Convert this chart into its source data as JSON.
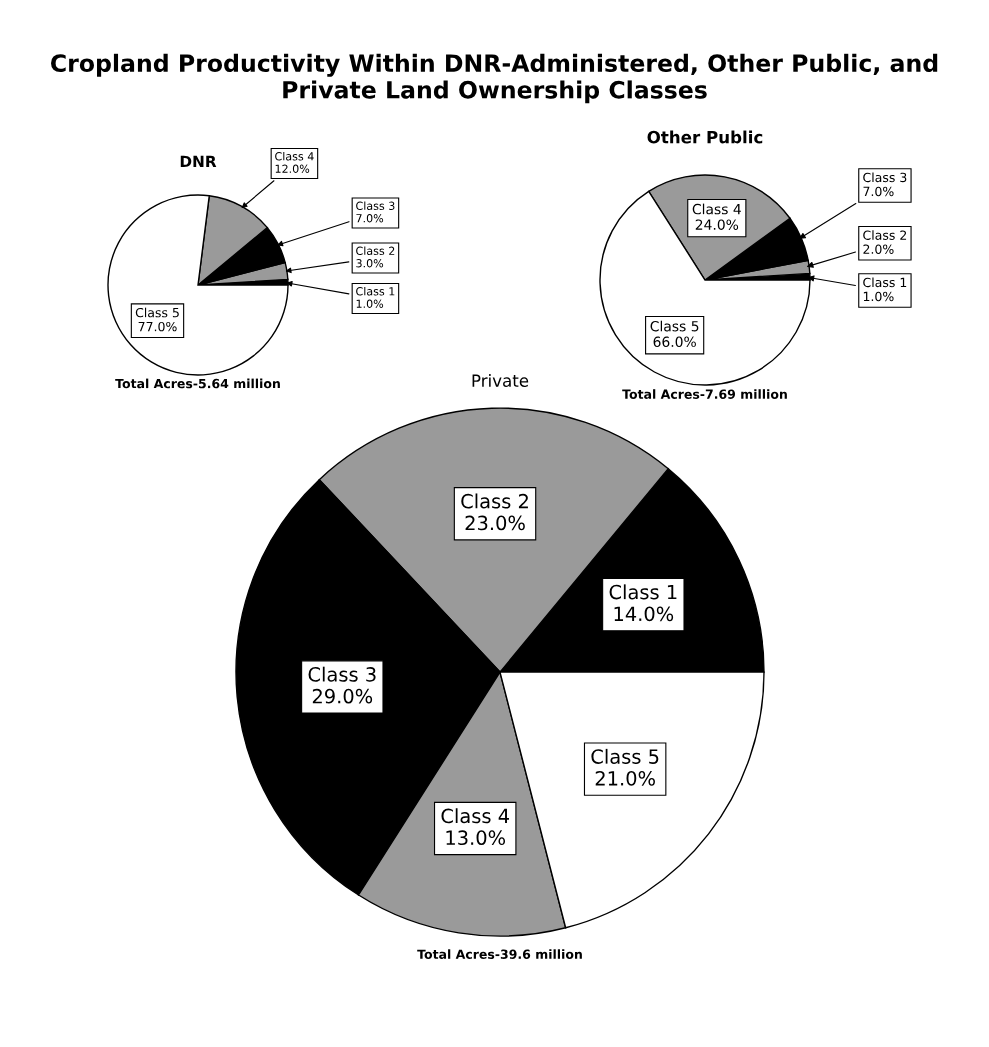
{
  "chart_data": [
    {
      "type": "pie",
      "title": "DNR",
      "categories": [
        "Class 1",
        "Class 2",
        "Class 3",
        "Class 4",
        "Class 5"
      ],
      "values": [
        1,
        3,
        7,
        12,
        77
      ],
      "value_labels": [
        "1.0%",
        "3.0%",
        "7.0%",
        "12.0%",
        "77.0%"
      ],
      "colors": [
        "#000000",
        "#9a9a9a",
        "#000000",
        "#9a9a9a",
        "#ffffff"
      ],
      "annotations": [
        "Cropland Productivity Within DNR-Administered, Other Public, and Private Land Ownership Classes",
        "Total Acres-5.64 million"
      ]
    },
    {
      "type": "pie",
      "title": "Other Public",
      "categories": [
        "Class 1",
        "Class 2",
        "Class 3",
        "Class 4",
        "Class 5"
      ],
      "values": [
        1,
        2,
        7,
        24,
        66
      ],
      "value_labels": [
        "1.0%",
        "2.0%",
        "7.0%",
        "24.0%",
        "66.0%"
      ],
      "colors": [
        "#000000",
        "#9a9a9a",
        "#000000",
        "#9a9a9a",
        "#ffffff"
      ],
      "annotations": [
        "Total Acres-7.69 million"
      ]
    },
    {
      "type": "pie",
      "title": "Private",
      "categories": [
        "Class 1",
        "Class 2",
        "Class 3",
        "Class 4",
        "Class 5"
      ],
      "values": [
        14,
        23,
        29,
        13,
        21
      ],
      "value_labels": [
        "14.0%",
        "23.0%",
        "29.0%",
        "13.0%",
        "21.0%"
      ],
      "colors": [
        "#000000",
        "#9a9a9a",
        "#000000",
        "#9a9a9a",
        "#ffffff"
      ],
      "annotations": [
        "Total Acres-39.6 million"
      ]
    }
  ]
}
